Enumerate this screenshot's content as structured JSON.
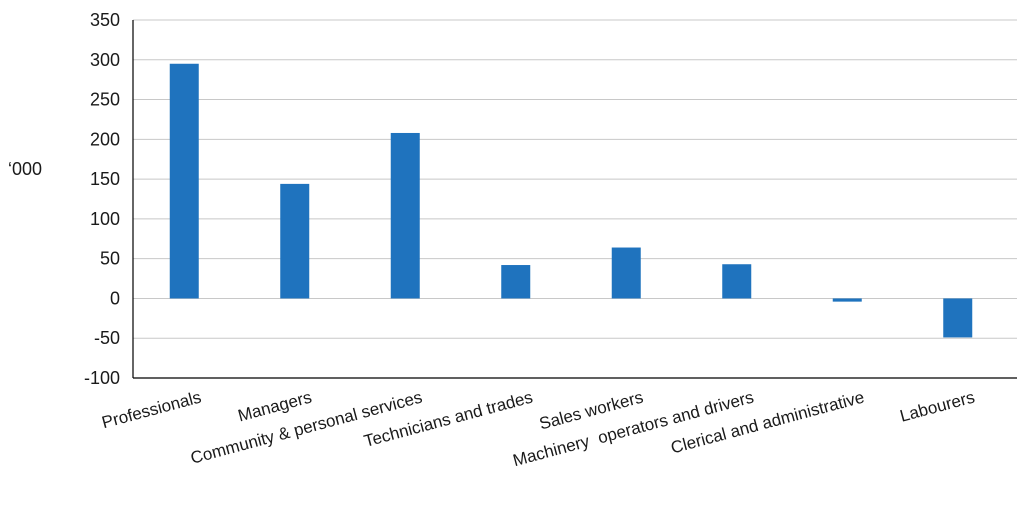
{
  "colors": {
    "bar": "#1f73be",
    "title": "#1f73be",
    "grid": "#c8c8c8",
    "axis": "#000000"
  },
  "chart_data": {
    "type": "bar",
    "title": "",
    "ylabel": "‘000",
    "xlabel": "",
    "ylim": [
      -100,
      350
    ],
    "yticks": [
      350,
      300,
      250,
      200,
      150,
      100,
      50,
      0,
      -50,
      -100
    ],
    "grid": true,
    "categories": [
      "Professionals",
      "Managers",
      "Community & personal services",
      "Technicians and trades",
      "Sales workers",
      "Machinery  operators and drivers",
      "Clerical and administrative",
      "Labourers"
    ],
    "values": [
      295,
      144,
      208,
      42,
      64,
      43,
      -4,
      -49
    ]
  }
}
